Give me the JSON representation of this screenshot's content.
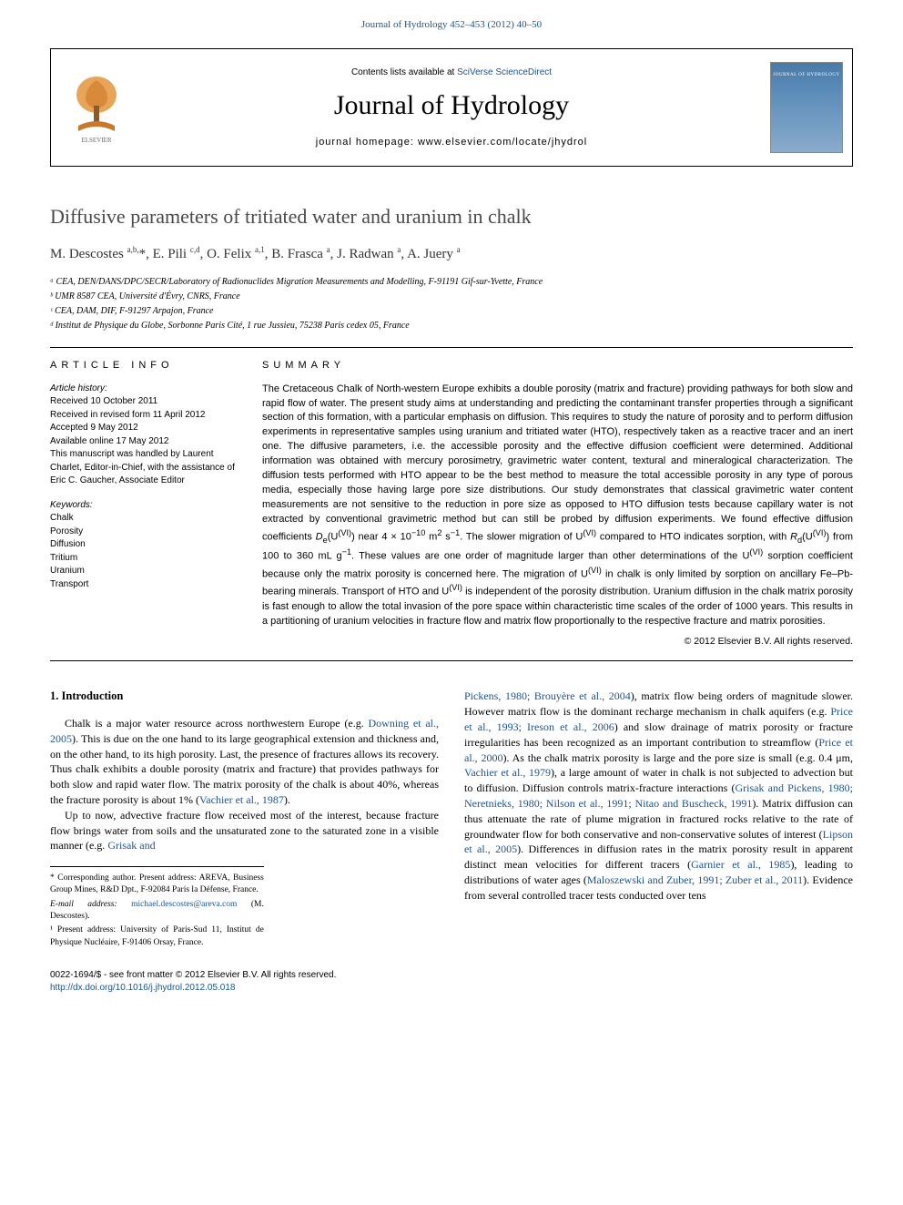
{
  "top_link": "Journal of Hydrology 452–453 (2012) 40–50",
  "header": {
    "contents_prefix": "Contents lists available at ",
    "contents_link": "SciVerse ScienceDirect",
    "journal_name": "Journal of Hydrology",
    "homepage_prefix": "journal homepage: ",
    "homepage_url": "www.elsevier.com/locate/jhydrol",
    "cover_text": "JOURNAL OF HYDROLOGY"
  },
  "article": {
    "title": "Diffusive parameters of tritiated water and uranium in chalk",
    "authors_html": "M. Descostes <sup>a,b,</sup>*, E. Pili <sup>c,d</sup>, O. Felix <sup>a,1</sup>, B. Frasca <sup>a</sup>, J. Radwan <sup>a</sup>, A. Juery <sup>a</sup>",
    "affiliations": [
      "ᵃ CEA, DEN/DANS/DPC/SECR/Laboratory of Radionuclides Migration Measurements and Modelling, F-91191 Gif-sur-Yvette, France",
      "ᵇ UMR 8587 CEA, Université d'Évry, CNRS, France",
      "ᶜ CEA, DAM, DIF, F-91297 Arpajon, France",
      "ᵈ Institut de Physique du Globe, Sorbonne Paris Cité, 1 rue Jussieu, 75238 Paris cedex 05, France"
    ]
  },
  "article_info": {
    "header": "article info",
    "history_label": "Article history:",
    "history": [
      "Received 10 October 2011",
      "Received in revised form 11 April 2012",
      "Accepted 9 May 2012",
      "Available online 17 May 2012",
      "This manuscript was handled by Laurent Charlet, Editor-in-Chief, with the assistance of Eric C. Gaucher, Associate Editor"
    ],
    "keywords_label": "Keywords:",
    "keywords": [
      "Chalk",
      "Porosity",
      "Diffusion",
      "Tritium",
      "Uranium",
      "Transport"
    ]
  },
  "summary": {
    "header": "summary",
    "text_html": "The Cretaceous Chalk of North-western Europe exhibits a double porosity (matrix and fracture) providing pathways for both slow and rapid flow of water. The present study aims at understanding and predicting the contaminant transfer properties through a significant section of this formation, with a particular emphasis on diffusion. This requires to study the nature of porosity and to perform diffusion experiments in representative samples using uranium and tritiated water (HTO), respectively taken as a reactive tracer and an inert one. The diffusive parameters, i.e. the accessible porosity and the effective diffusion coefficient were determined. Additional information was obtained with mercury porosimetry, gravimetric water content, textural and mineralogical characterization. The diffusion tests performed with HTO appear to be the best method to measure the total accessible porosity in any type of porous media, especially those having large pore size distributions. Our study demonstrates that classical gravimetric water content measurements are not sensitive to the reduction in pore size as opposed to HTO diffusion tests because capillary water is not extracted by conventional gravimetric method but can still be probed by diffusion experiments. We found effective diffusion coefficients <i>D</i><sub>e</sub>(U<sup>(VI)</sup>) near 4 × 10<sup>−10</sup> m<sup>2</sup> s<sup>−1</sup>. The slower migration of U<sup>(VI)</sup> compared to HTO indicates sorption, with <i>R</i><sub>d</sub>(U<sup>(VI)</sup>) from 100 to 360 mL g<sup>−1</sup>. These values are one order of magnitude larger than other determinations of the U<sup>(VI)</sup> sorption coefficient because only the matrix porosity is concerned here. The migration of U<sup>(VI)</sup> in chalk is only limited by sorption on ancillary Fe–Pb-bearing minerals. Transport of HTO and U<sup>(VI)</sup> is independent of the porosity distribution. Uranium diffusion in the chalk matrix porosity is fast enough to allow the total invasion of the pore space within characteristic time scales of the order of 1000 years. This results in a partitioning of uranium velocities in fracture flow and matrix flow proportionally to the respective fracture and matrix porosities.",
    "copyright": "© 2012 Elsevier B.V. All rights reserved."
  },
  "body": {
    "heading": "1. Introduction",
    "col1_p1_html": "Chalk is a major water resource across northwestern Europe (e.g. <a class=\"intext\">Downing et al., 2005</a>). This is due on the one hand to its large geographical extension and thickness and, on the other hand, to its high porosity. Last, the presence of fractures allows its recovery. Thus chalk exhibits a double porosity (matrix and fracture) that provides pathways for both slow and rapid water flow. The matrix porosity of the chalk is about 40%, whereas the fracture porosity is about 1% (<a class=\"intext\">Vachier et al., 1987</a>).",
    "col1_p2_html": "Up to now, advective fracture flow received most of the interest, because fracture flow brings water from soils and the unsaturated zone to the saturated zone in a visible manner (e.g. <a class=\"intext\">Grisak and</a>",
    "col2_p1_html": "<a class=\"intext\">Pickens, 1980; Brouyère et al., 2004</a>), matrix flow being orders of magnitude slower. However matrix flow is the dominant recharge mechanism in chalk aquifers (e.g. <a class=\"intext\">Price et al., 1993; Ireson et al., 2006</a>) and slow drainage of matrix porosity or fracture irregularities has been recognized as an important contribution to streamflow (<a class=\"intext\">Price et al., 2000</a>). As the chalk matrix porosity is large and the pore size is small (e.g. 0.4 μm, <a class=\"intext\">Vachier et al., 1979</a>), a large amount of water in chalk is not subjected to advection but to diffusion. Diffusion controls matrix-fracture interactions (<a class=\"intext\">Grisak and Pickens, 1980; Neretnieks, 1980; Nilson et al., 1991; Nitao and Buscheck, 1991</a>). Matrix diffusion can thus attenuate the rate of plume migration in fractured rocks relative to the rate of groundwater flow for both conservative and non-conservative solutes of interest (<a class=\"intext\">Lipson et al., 2005</a>). Differences in diffusion rates in the matrix porosity result in apparent distinct mean velocities for different tracers (<a class=\"intext\">Garnier et al., 1985</a>), leading to distributions of water ages (<a class=\"intext\">Maloszewski and Zuber, 1991; Zuber et al., 2011</a>). Evidence from several controlled tracer tests conducted over tens"
  },
  "footnotes": {
    "corr_html": "* Corresponding author. Present address: AREVA, Business Group Mines, R&amp;D Dpt., F-92084 Paris la Défense, France.",
    "email_label": "E-mail address: ",
    "email": "michael.descostes@areva.com",
    "email_suffix": " (M. Descostes).",
    "note1": "¹ Present address: University of Paris-Sud 11, Institut de Physique Nucléaire, F-91406 Orsay, France."
  },
  "bottom": {
    "issn_line": "0022-1694/$ - see front matter © 2012 Elsevier B.V. All rights reserved.",
    "doi": "http://dx.doi.org/10.1016/j.jhydrol.2012.05.018"
  },
  "colors": {
    "link": "#1a5490",
    "title_gray": "#4a4a4a"
  }
}
